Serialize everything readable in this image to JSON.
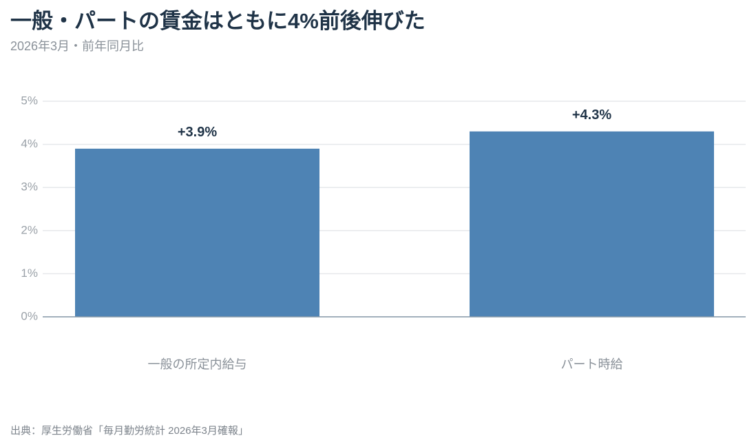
{
  "chart_data": {
    "type": "bar",
    "title": "一般・パートの賃金はともに4%前後伸びた",
    "subtitle": "2026年3月・前年同月比",
    "source": "出典：厚生労働省「毎月勤労統計 2026年3月確報」",
    "categories": [
      "一般の所定内給与",
      "パート時給"
    ],
    "values": [
      3.9,
      4.3
    ],
    "value_labels": [
      "+3.9%",
      "+4.3%"
    ],
    "color": "#4e83b4",
    "ylim": [
      0,
      5
    ],
    "yticks": [
      {
        "value": 0,
        "label": "0%"
      },
      {
        "value": 1,
        "label": "1%"
      },
      {
        "value": 2,
        "label": "2%"
      },
      {
        "value": 3,
        "label": "3%"
      },
      {
        "value": 4,
        "label": "4%"
      },
      {
        "value": 5,
        "label": "5%"
      }
    ],
    "grid": true
  }
}
